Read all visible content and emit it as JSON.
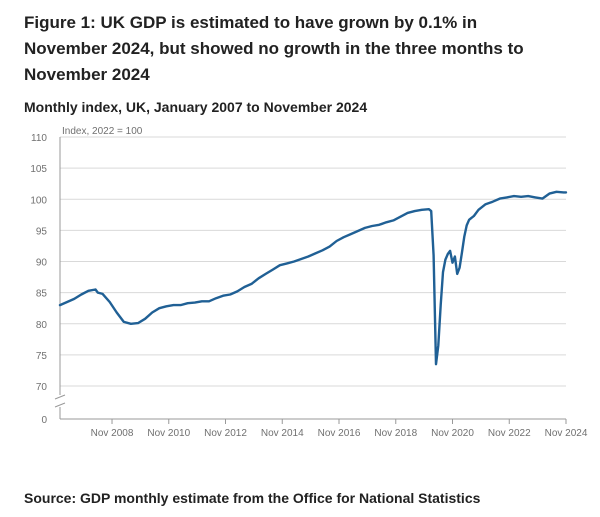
{
  "title": "Figure 1: UK GDP is estimated to have grown by 0.1% in November 2024, but showed no growth in the three months to November 2024",
  "subtitle": "Monthly index, UK, January 2007 to November 2024",
  "source": "Source: GDP monthly estimate from the Office for National Statistics",
  "colors": {
    "line": "#206095",
    "grid": "#d9d9d9",
    "axis": "#999999",
    "text": "#707070"
  },
  "chart_data": {
    "type": "line",
    "ylabel": "Index, 2022 = 100",
    "yticks": [
      110,
      105,
      100,
      95,
      90,
      85,
      80,
      75,
      70,
      0
    ],
    "y_axis_break": true,
    "ylim": [
      70,
      110
    ],
    "xlim": [
      "Jan 2007",
      "Nov 2024"
    ],
    "xticks": [
      "Nov 2008",
      "Nov 2010",
      "Nov 2012",
      "Nov 2014",
      "Nov 2016",
      "Nov 2018",
      "Nov 2020",
      "Nov 2022",
      "Nov 2024"
    ],
    "grid": "horizontal",
    "series": [
      {
        "color": "#206095",
        "points": [
          [
            "Jan 2007",
            83.0
          ],
          [
            "Apr 2007",
            83.5
          ],
          [
            "Jul 2007",
            84.0
          ],
          [
            "Oct 2007",
            84.7
          ],
          [
            "Jan 2008",
            85.3
          ],
          [
            "Apr 2008",
            85.5
          ],
          [
            "May 2008",
            85.0
          ],
          [
            "Jul 2008",
            84.8
          ],
          [
            "Oct 2008",
            83.5
          ],
          [
            "Jan 2009",
            81.8
          ],
          [
            "Apr 2009",
            80.3
          ],
          [
            "Jul 2009",
            80.0
          ],
          [
            "Oct 2009",
            80.1
          ],
          [
            "Jan 2010",
            80.8
          ],
          [
            "Apr 2010",
            81.8
          ],
          [
            "Jul 2010",
            82.5
          ],
          [
            "Oct 2010",
            82.8
          ],
          [
            "Jan 2011",
            83.0
          ],
          [
            "Apr 2011",
            83.0
          ],
          [
            "Jul 2011",
            83.3
          ],
          [
            "Oct 2011",
            83.4
          ],
          [
            "Jan 2012",
            83.6
          ],
          [
            "Apr 2012",
            83.6
          ],
          [
            "Jul 2012",
            84.1
          ],
          [
            "Oct 2012",
            84.5
          ],
          [
            "Jan 2013",
            84.7
          ],
          [
            "Apr 2013",
            85.2
          ],
          [
            "Jul 2013",
            85.9
          ],
          [
            "Oct 2013",
            86.4
          ],
          [
            "Jan 2014",
            87.3
          ],
          [
            "Apr 2014",
            88.0
          ],
          [
            "Jul 2014",
            88.7
          ],
          [
            "Oct 2014",
            89.4
          ],
          [
            "Jan 2015",
            89.7
          ],
          [
            "Apr 2015",
            90.0
          ],
          [
            "Jul 2015",
            90.4
          ],
          [
            "Oct 2015",
            90.8
          ],
          [
            "Jan 2016",
            91.3
          ],
          [
            "Apr 2016",
            91.8
          ],
          [
            "Jul 2016",
            92.4
          ],
          [
            "Oct 2016",
            93.3
          ],
          [
            "Jan 2017",
            93.9
          ],
          [
            "Apr 2017",
            94.4
          ],
          [
            "Jul 2017",
            94.9
          ],
          [
            "Oct 2017",
            95.4
          ],
          [
            "Jan 2018",
            95.7
          ],
          [
            "Apr 2018",
            95.9
          ],
          [
            "Jul 2018",
            96.3
          ],
          [
            "Oct 2018",
            96.6
          ],
          [
            "Jan 2019",
            97.2
          ],
          [
            "Apr 2019",
            97.8
          ],
          [
            "Jul 2019",
            98.1
          ],
          [
            "Oct 2019",
            98.3
          ],
          [
            "Jan 2020",
            98.4
          ],
          [
            "Feb 2020",
            98.1
          ],
          [
            "Mar 2020",
            91.0
          ],
          [
            "Apr 2020",
            73.5
          ],
          [
            "May 2020",
            76.5
          ],
          [
            "Jun 2020",
            83.0
          ],
          [
            "Jul 2020",
            88.3
          ],
          [
            "Aug 2020",
            90.3
          ],
          [
            "Sep 2020",
            91.2
          ],
          [
            "Oct 2020",
            91.7
          ],
          [
            "Nov 2020",
            89.8
          ],
          [
            "Dec 2020",
            90.8
          ],
          [
            "Jan 2021",
            88.0
          ],
          [
            "Feb 2021",
            89.0
          ],
          [
            "Mar 2021",
            91.5
          ],
          [
            "Apr 2021",
            94.0
          ],
          [
            "May 2021",
            95.8
          ],
          [
            "Jun 2021",
            96.7
          ],
          [
            "Jul 2021",
            97.0
          ],
          [
            "Aug 2021",
            97.3
          ],
          [
            "Oct 2021",
            98.3
          ],
          [
            "Jan 2022",
            99.2
          ],
          [
            "Apr 2022",
            99.6
          ],
          [
            "Jul 2022",
            100.1
          ],
          [
            "Oct 2022",
            100.3
          ],
          [
            "Jan 2023",
            100.5
          ],
          [
            "Apr 2023",
            100.4
          ],
          [
            "Jul 2023",
            100.5
          ],
          [
            "Oct 2023",
            100.3
          ],
          [
            "Jan 2024",
            100.1
          ],
          [
            "Apr 2024",
            100.9
          ],
          [
            "Jul 2024",
            101.2
          ],
          [
            "Oct 2024",
            101.1
          ],
          [
            "Nov 2024",
            101.1
          ]
        ]
      }
    ]
  }
}
